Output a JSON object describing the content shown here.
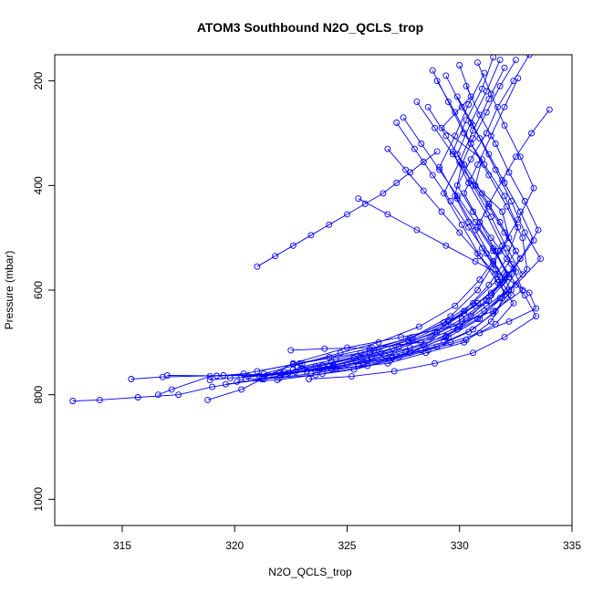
{
  "chart_data": {
    "type": "scatter",
    "title": "ATOM3 Southbound N2O_QCLS_trop",
    "xlabel": "N2O_QCLS_trop",
    "ylabel": "Pressure (mbar)",
    "xlim": [
      312.0,
      335.0
    ],
    "ylim": [
      1050,
      150
    ],
    "y_inverted": true,
    "grid": false,
    "legend": "none",
    "series_color": "#0000ff",
    "marker": "open-circle-connected",
    "xticks": [
      315,
      320,
      325,
      330,
      335
    ],
    "xtick_labels": [
      "315",
      "320",
      "325",
      "330",
      "335"
    ],
    "yticks": [
      200,
      400,
      600,
      800,
      1000
    ],
    "ytick_labels": [
      "200",
      "400",
      "600",
      "800",
      "1000"
    ],
    "series": [
      {
        "x": [
          332.5,
          331.8,
          331.2,
          330.6,
          330.1,
          329.8,
          330.4,
          331.0,
          331.6,
          332.0,
          331.4,
          330.2,
          328.5,
          326.8,
          324.5,
          322.1,
          319.5,
          316.8,
          315.4
        ],
        "y": [
          160,
          210,
          260,
          310,
          360,
          420,
          470,
          520,
          560,
          610,
          660,
          700,
          720,
          740,
          750,
          760,
          763,
          766,
          770
        ]
      },
      {
        "x": [
          330.0,
          330.5,
          329.2,
          331.0,
          330.7,
          331.9,
          332.2,
          331.5,
          330.8,
          329.6,
          327.9,
          325.6,
          322.9,
          320.4,
          318.9,
          317.2,
          316.6
        ],
        "y": [
          170,
          230,
          290,
          350,
          400,
          450,
          500,
          550,
          600,
          650,
          690,
          720,
          740,
          760,
          765,
          790,
          800
        ]
      },
      {
        "x": [
          328.8,
          329.5,
          330.2,
          331.1,
          332.0,
          332.6,
          332.1,
          331.3,
          330.2,
          329.0,
          326.5,
          323.8,
          321.2,
          319.0,
          317.5,
          315.7,
          314.0,
          312.8
        ],
        "y": [
          180,
          240,
          300,
          360,
          420,
          480,
          540,
          590,
          640,
          680,
          720,
          750,
          770,
          785,
          800,
          805,
          810,
          812
        ]
      },
      {
        "x": [
          333.1,
          332.4,
          331.7,
          331.2,
          330.5,
          329.9,
          330.6,
          331.4,
          332.3,
          332.8,
          331.5,
          329.7,
          327.4,
          325.0,
          322.6,
          320.3,
          318.8
        ],
        "y": [
          150,
          200,
          250,
          300,
          350,
          400,
          450,
          500,
          550,
          600,
          640,
          670,
          690,
          710,
          740,
          790,
          810
        ]
      },
      {
        "x": [
          329.4,
          330.1,
          330.9,
          331.6,
          332.3,
          332.9,
          333.6,
          332.5,
          331.2,
          330.0,
          328.3,
          326.1,
          324.0,
          322.5
        ],
        "y": [
          190,
          250,
          310,
          370,
          430,
          490,
          540,
          590,
          630,
          670,
          700,
          710,
          712,
          715
        ]
      },
      {
        "x": [
          331.5,
          331.0,
          330.3,
          329.7,
          330.4,
          331.2,
          331.9,
          332.5,
          331.8,
          330.9,
          329.5,
          327.0,
          324.3,
          321.8,
          319.2,
          317.0
        ],
        "y": [
          155,
          215,
          275,
          335,
          395,
          455,
          515,
          565,
          615,
          655,
          690,
          730,
          750,
          762,
          764,
          763
        ]
      },
      {
        "x": [
          334.0,
          333.2,
          332.5,
          331.9,
          331.3,
          330.8,
          331.5,
          332.2,
          332.9,
          333.4,
          332.0,
          330.6,
          328.9,
          327.1,
          325.2,
          323.3
        ],
        "y": [
          255,
          300,
          345,
          390,
          435,
          480,
          525,
          570,
          610,
          650,
          690,
          720,
          740,
          755,
          765,
          770
        ]
      },
      {
        "x": [
          327.5,
          328.3,
          329.1,
          329.9,
          330.7,
          331.5,
          332.1,
          331.4,
          330.5,
          329.4,
          327.8,
          325.9,
          323.9,
          321.9,
          320.1
        ],
        "y": [
          270,
          320,
          370,
          420,
          470,
          520,
          570,
          610,
          650,
          690,
          720,
          745,
          760,
          772,
          775
        ]
      },
      {
        "x": [
          330.8,
          331.4,
          332.0,
          332.7,
          333.3,
          332.6,
          331.8,
          330.9,
          329.8,
          328.2,
          326.4,
          324.7,
          323.0,
          321.3
        ],
        "y": [
          165,
          225,
          285,
          345,
          405,
          465,
          525,
          580,
          630,
          670,
          700,
          720,
          740,
          760
        ]
      },
      {
        "x": [
          332.0,
          331.3,
          330.6,
          330.0,
          329.3,
          330.1,
          330.9,
          331.7,
          332.4,
          331.6,
          330.3,
          328.6,
          326.9,
          325.3,
          323.6,
          322.0,
          320.5
        ],
        "y": [
          175,
          235,
          295,
          355,
          415,
          475,
          535,
          585,
          625,
          665,
          695,
          715,
          735,
          752,
          762,
          768,
          770
        ]
      },
      {
        "x": [
          326.8,
          327.6,
          328.4,
          329.2,
          330.0,
          330.8,
          331.6,
          332.3,
          331.5,
          330.4,
          329.0,
          327.3,
          325.5,
          323.4,
          321.3,
          319.6
        ],
        "y": [
          330,
          370,
          410,
          450,
          490,
          530,
          570,
          610,
          645,
          680,
          708,
          728,
          745,
          760,
          770,
          780
        ]
      },
      {
        "x": [
          329.0,
          329.8,
          330.5,
          331.3,
          332.1,
          332.8,
          333.0,
          332.2,
          331.1,
          329.9,
          328.4,
          326.7,
          325.0,
          323.2,
          321.5,
          319.8,
          318.9
        ],
        "y": [
          200,
          260,
          320,
          380,
          440,
          500,
          560,
          600,
          640,
          675,
          705,
          725,
          742,
          755,
          763,
          768,
          772
        ]
      },
      {
        "x": [
          331.1,
          330.4,
          329.8,
          329.1,
          329.9,
          330.7,
          331.5,
          332.3,
          331.6,
          330.6,
          329.3,
          327.6,
          325.9,
          324.1,
          322.4
        ],
        "y": [
          185,
          245,
          305,
          365,
          425,
          485,
          545,
          600,
          640,
          675,
          700,
          718,
          735,
          750,
          758
        ]
      },
      {
        "x": [
          328.1,
          328.9,
          329.7,
          330.5,
          331.3,
          332.0,
          332.7,
          331.9,
          330.8,
          329.5,
          327.8,
          326.0,
          324.2,
          322.6,
          321.0
        ],
        "y": [
          240,
          290,
          340,
          390,
          440,
          490,
          540,
          585,
          625,
          660,
          692,
          712,
          728,
          742,
          755
        ]
      },
      {
        "x": [
          330.3,
          330.9,
          331.6,
          332.2,
          332.9,
          333.5,
          332.7,
          331.8,
          330.7,
          329.4,
          327.9,
          326.2,
          324.5,
          322.8
        ],
        "y": [
          210,
          265,
          320,
          375,
          430,
          485,
          540,
          590,
          630,
          665,
          695,
          715,
          732,
          748
        ]
      },
      {
        "x": [
          332.6,
          332.0,
          331.4,
          330.8,
          330.2,
          330.9,
          331.6,
          332.2,
          331.3,
          330.1,
          328.7,
          327.0,
          325.3,
          323.6,
          322.0,
          320.3
        ],
        "y": [
          195,
          250,
          305,
          360,
          415,
          470,
          525,
          575,
          620,
          660,
          690,
          712,
          730,
          746,
          758,
          766
        ]
      },
      {
        "x": [
          327.2,
          328.0,
          328.8,
          329.6,
          330.4,
          331.2,
          332.0,
          331.2,
          330.1,
          328.8,
          327.1,
          325.4,
          323.7
        ],
        "y": [
          280,
          330,
          380,
          430,
          480,
          530,
          580,
          620,
          655,
          688,
          715,
          735,
          750
        ]
      },
      {
        "x": [
          329.9,
          330.6,
          331.3,
          332.0,
          332.7,
          333.3,
          332.4,
          331.4,
          330.2,
          328.9,
          327.3,
          325.6,
          323.9,
          322.2,
          320.6
        ],
        "y": [
          230,
          285,
          340,
          395,
          450,
          505,
          560,
          605,
          645,
          680,
          708,
          728,
          744,
          757,
          765
        ]
      },
      {
        "x": [
          331.8,
          331.2,
          330.5,
          329.9,
          330.6,
          331.4,
          332.1,
          332.8,
          331.9,
          330.8,
          329.4,
          327.8,
          326.1,
          324.4,
          322.7,
          321.1
        ],
        "y": [
          160,
          220,
          280,
          340,
          400,
          460,
          520,
          570,
          615,
          655,
          688,
          710,
          728,
          744,
          756,
          764
        ]
      },
      {
        "x": [
          328.6,
          329.4,
          330.2,
          331.0,
          331.8,
          332.5,
          331.7,
          330.6,
          329.3,
          327.7,
          326.0,
          324.3,
          322.6
        ],
        "y": [
          250,
          305,
          360,
          415,
          470,
          525,
          580,
          625,
          662,
          695,
          720,
          738,
          752
        ]
      },
      {
        "x": [
          329.0,
          328.4,
          327.8,
          327.2,
          326.6,
          325.8,
          325.0,
          324.2,
          323.4,
          322.6,
          321.8,
          321.0
        ],
        "y": [
          335,
          355,
          375,
          395,
          415,
          435,
          455,
          475,
          495,
          515,
          535,
          555
        ]
      },
      {
        "x": [
          325.5,
          326.8,
          328.1,
          329.4,
          330.7,
          332.0,
          333.1,
          333.4,
          332.2,
          330.9,
          329.6,
          328.3,
          327.0,
          325.7,
          324.4,
          323.1
        ],
        "y": [
          425,
          455,
          485,
          515,
          545,
          575,
          605,
          635,
          660,
          682,
          700,
          715,
          728,
          738,
          746,
          752
        ]
      }
    ]
  }
}
